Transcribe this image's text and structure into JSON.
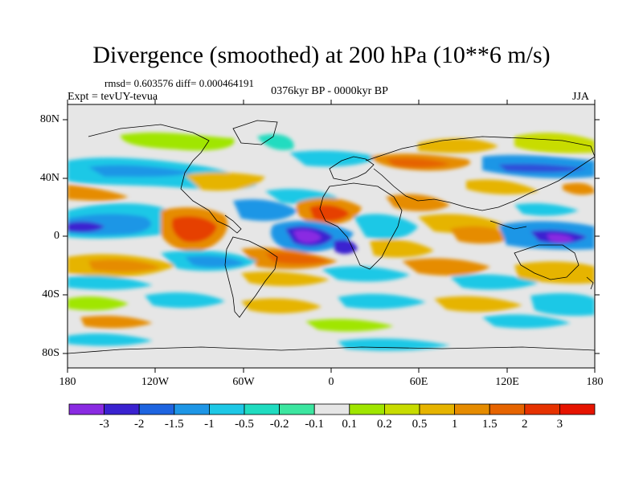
{
  "title": "Divergence (smoothed) at 200 hPa (10**6 m/s)",
  "stats": "rmsd= 0.603576 diff= 0.000464191",
  "period": "0376kyr BP - 0000kyr BP",
  "expt": "Expt = tevUY-tevua",
  "season": "JJA",
  "map": {
    "lat_ticks": [
      {
        "value": 80,
        "label": "80N"
      },
      {
        "value": 40,
        "label": "40N"
      },
      {
        "value": 0,
        "label": "0"
      },
      {
        "value": -40,
        "label": "40S"
      },
      {
        "value": -80,
        "label": "80S"
      }
    ],
    "lon_ticks": [
      {
        "value": -180,
        "label": "180"
      },
      {
        "value": -120,
        "label": "120W"
      },
      {
        "value": -60,
        "label": "60W"
      },
      {
        "value": 0,
        "label": "0"
      },
      {
        "value": 60,
        "label": "60E"
      },
      {
        "value": 120,
        "label": "120E"
      },
      {
        "value": 180,
        "label": "180"
      }
    ],
    "lon_range": [
      -180,
      180
    ],
    "lat_range": [
      -90,
      90
    ],
    "background_color": "#e6e6e6"
  },
  "colorbar": {
    "colors": [
      "#8a2be2",
      "#3a22d0",
      "#1e64e0",
      "#1e96e6",
      "#1ec8e6",
      "#20dcc0",
      "#3ce6a0",
      "#e6e6e6",
      "#a0e600",
      "#c8dc00",
      "#e6b400",
      "#e68c00",
      "#e66400",
      "#e63200",
      "#e61400"
    ],
    "labels": [
      "-3",
      "-2",
      "-1.5",
      "-1",
      "-0.5",
      "-0.2",
      "-0.1",
      "0.1",
      "0.2",
      "0.5",
      "1",
      "1.5",
      "2",
      "3"
    ]
  }
}
